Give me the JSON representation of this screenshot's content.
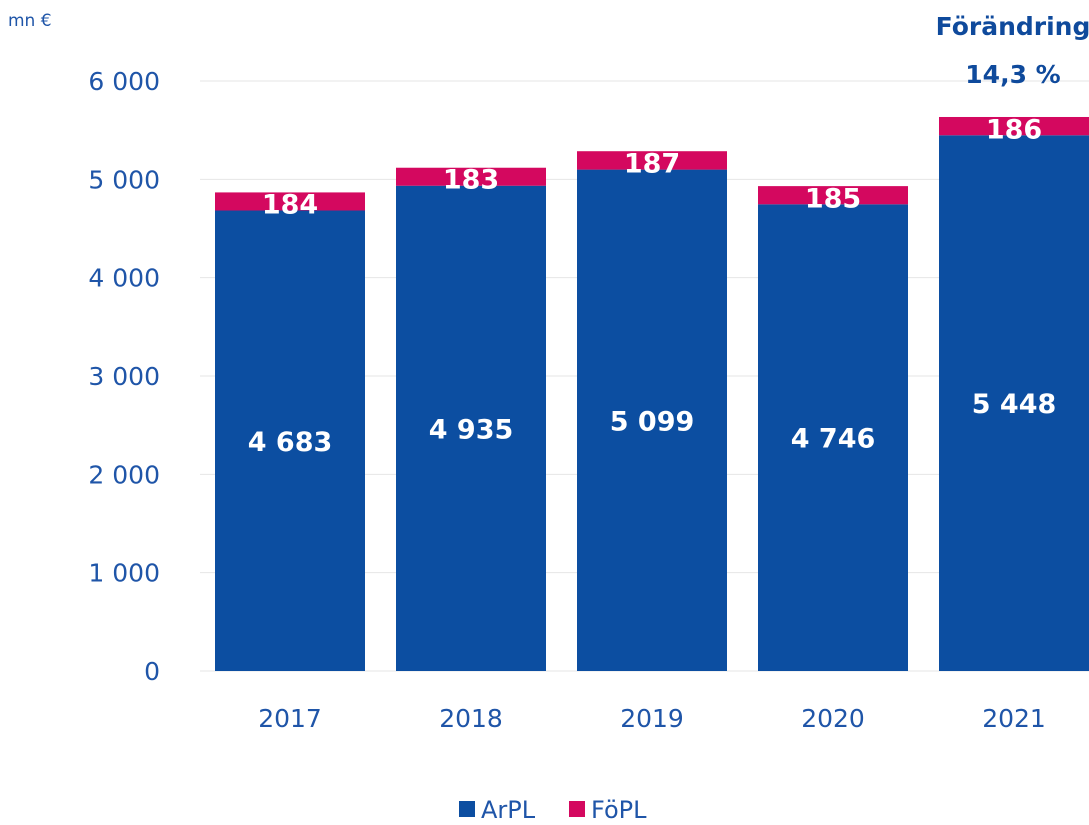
{
  "chart_data": {
    "type": "bar",
    "stacked": true,
    "unit": "mn €",
    "categories": [
      "2017",
      "2018",
      "2019",
      "2020",
      "2021"
    ],
    "series": [
      {
        "name": "ArPL",
        "values": [
          4683,
          4935,
          5099,
          4746,
          5448
        ],
        "color": "#0c4ea1"
      },
      {
        "name": "FöPL",
        "values": [
          184,
          183,
          187,
          185,
          186
        ],
        "color": "#d4085f"
      }
    ],
    "data_labels": {
      "ArPL": [
        "4 683",
        "4 935",
        "5 099",
        "4 746",
        "5 448"
      ],
      "FöPL": [
        "184",
        "183",
        "187",
        "185",
        "186"
      ]
    },
    "ylim": [
      0,
      6000
    ],
    "yticks": [
      {
        "value": 0,
        "label": "0"
      },
      {
        "value": 1000,
        "label": "1 000"
      },
      {
        "value": 2000,
        "label": "2 000"
      },
      {
        "value": 3000,
        "label": "3 000"
      },
      {
        "value": 4000,
        "label": "4 000"
      },
      {
        "value": 5000,
        "label": "5 000"
      },
      {
        "value": 6000,
        "label": "6 000"
      }
    ],
    "grid": true,
    "legend": "bottom",
    "annotation": {
      "title": "Förändring",
      "value": "14,3 %"
    }
  }
}
